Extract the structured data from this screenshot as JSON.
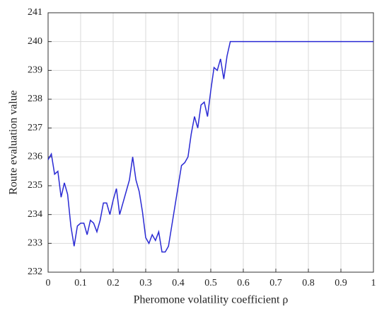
{
  "chart_data": {
    "type": "line",
    "xlabel": "Pheromone volatility coefficient ρ",
    "ylabel": "Route evaluation value",
    "x": [
      0,
      0.01,
      0.02,
      0.03,
      0.04,
      0.05,
      0.06,
      0.07,
      0.08,
      0.09,
      0.1,
      0.11,
      0.12,
      0.13,
      0.14,
      0.15,
      0.16,
      0.17,
      0.18,
      0.19,
      0.2,
      0.21,
      0.22,
      0.23,
      0.24,
      0.25,
      0.26,
      0.27,
      0.28,
      0.29,
      0.3,
      0.31,
      0.32,
      0.33,
      0.34,
      0.35,
      0.36,
      0.37,
      0.38,
      0.39,
      0.4,
      0.41,
      0.42,
      0.43,
      0.44,
      0.45,
      0.46,
      0.47,
      0.48,
      0.49,
      0.5,
      0.51,
      0.52,
      0.53,
      0.54,
      0.55,
      0.56,
      0.57,
      1
    ],
    "values": [
      235.9,
      236.1,
      235.4,
      235.5,
      234.6,
      235.1,
      234.7,
      233.6,
      232.9,
      233.6,
      233.7,
      233.7,
      233.3,
      233.8,
      233.7,
      233.4,
      233.8,
      234.4,
      234.4,
      234.0,
      234.5,
      234.9,
      234.0,
      234.4,
      234.8,
      235.2,
      236.0,
      235.2,
      234.8,
      234.1,
      233.2,
      233.0,
      233.3,
      233.1,
      233.4,
      232.7,
      232.7,
      232.9,
      233.6,
      234.3,
      235.0,
      235.7,
      235.8,
      236.0,
      236.8,
      237.4,
      237.0,
      237.8,
      237.9,
      237.4,
      238.3,
      239.1,
      239.0,
      239.4,
      238.7,
      239.5,
      240.0,
      240,
      240
    ],
    "color": "#2a2ad4",
    "xlim": [
      0,
      1
    ],
    "xticks": [
      0,
      0.1,
      0.2,
      0.3,
      0.4,
      0.5,
      0.6,
      0.7,
      0.8,
      0.9,
      1
    ],
    "ylim": [
      232,
      241
    ],
    "yticks": [
      232,
      233,
      234,
      235,
      236,
      237,
      238,
      239,
      240,
      241
    ],
    "grid": true
  }
}
